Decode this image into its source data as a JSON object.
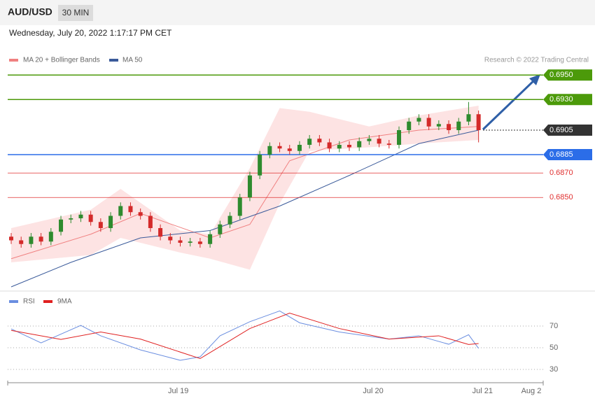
{
  "header": {
    "symbol": "AUD/USD",
    "timeframe": "30 MIN",
    "timestamp": "Wednesday, July 20, 2022 1:17:17 PM CET",
    "credit": "Research © 2022 Trading Central"
  },
  "chart_data": [
    {
      "type": "candlestick",
      "xlim": [
        0,
        53.5
      ],
      "ylim": [
        0.6777,
        0.6977
      ],
      "up_color": "#2e8b2e",
      "down_color": "#d42a2a",
      "open": [
        0.6818,
        0.6815,
        0.6812,
        0.6818,
        0.6814,
        0.6822,
        0.6832,
        0.6833,
        0.6836,
        0.683,
        0.6825,
        0.6835,
        0.6843,
        0.6838,
        0.6835,
        0.6825,
        0.6818,
        0.6815,
        0.6813,
        0.6814,
        0.6812,
        0.682,
        0.6828,
        0.6835,
        0.685,
        0.6868,
        0.6885,
        0.6892,
        0.689,
        0.6888,
        0.6893,
        0.6898,
        0.6895,
        0.689,
        0.6893,
        0.6891,
        0.6896,
        0.6898,
        0.6894,
        0.6893,
        0.6905,
        0.6912,
        0.6915,
        0.6908,
        0.691,
        0.6905,
        0.6912,
        0.6918
      ],
      "high": [
        0.6821,
        0.6818,
        0.6821,
        0.6821,
        0.6825,
        0.6835,
        0.6836,
        0.6839,
        0.6839,
        0.6833,
        0.6838,
        0.6846,
        0.6846,
        0.6841,
        0.6838,
        0.6828,
        0.6821,
        0.6818,
        0.6817,
        0.6817,
        0.6823,
        0.6831,
        0.6838,
        0.6853,
        0.6871,
        0.6888,
        0.6895,
        0.6895,
        0.6893,
        0.6896,
        0.6901,
        0.6901,
        0.6898,
        0.6896,
        0.6896,
        0.6899,
        0.6901,
        0.6901,
        0.6897,
        0.6908,
        0.6915,
        0.6918,
        0.6918,
        0.6913,
        0.6913,
        0.6915,
        0.6928,
        0.6921
      ],
      "low": [
        0.6812,
        0.6809,
        0.6809,
        0.6811,
        0.6811,
        0.6819,
        0.6829,
        0.683,
        0.6827,
        0.6822,
        0.6822,
        0.6832,
        0.6835,
        0.6832,
        0.6822,
        0.6815,
        0.6812,
        0.681,
        0.681,
        0.6809,
        0.6809,
        0.6817,
        0.6825,
        0.6832,
        0.6847,
        0.6865,
        0.6882,
        0.6887,
        0.6885,
        0.6885,
        0.689,
        0.6892,
        0.6887,
        0.6887,
        0.6888,
        0.6888,
        0.6893,
        0.6891,
        0.689,
        0.689,
        0.6902,
        0.6909,
        0.6905,
        0.6905,
        0.6902,
        0.6902,
        0.6909,
        0.6895
      ],
      "close": [
        0.6815,
        0.6812,
        0.6818,
        0.6814,
        0.6822,
        0.6832,
        0.6833,
        0.6836,
        0.683,
        0.6825,
        0.6835,
        0.6843,
        0.6838,
        0.6835,
        0.6825,
        0.6818,
        0.6815,
        0.6813,
        0.6814,
        0.6812,
        0.682,
        0.6828,
        0.6835,
        0.685,
        0.6868,
        0.6885,
        0.6892,
        0.689,
        0.6888,
        0.6893,
        0.6898,
        0.6895,
        0.689,
        0.6893,
        0.6891,
        0.6896,
        0.6898,
        0.6894,
        0.6893,
        0.6905,
        0.6912,
        0.6915,
        0.6908,
        0.691,
        0.6905,
        0.6912,
        0.6918,
        0.6905
      ],
      "bands": {
        "name": "MA 20 + Bollinger Bands",
        "color": "#f08080",
        "x": [
          0,
          8,
          11,
          17,
          20,
          24,
          27,
          30,
          36,
          41,
          47
        ],
        "upper": [
          0.6825,
          0.684,
          0.6857,
          0.6823,
          0.682,
          0.6874,
          0.6923,
          0.692,
          0.6908,
          0.6917,
          0.6925
        ],
        "lower": [
          0.6797,
          0.6803,
          0.6817,
          0.6805,
          0.68,
          0.6791,
          0.6845,
          0.6888,
          0.6891,
          0.6894,
          0.6897
        ],
        "ma_x": [
          0,
          8,
          13,
          20,
          24,
          28,
          34,
          41,
          47
        ],
        "ma": [
          0.68,
          0.682,
          0.6837,
          0.6817,
          0.6828,
          0.688,
          0.6897,
          0.6905,
          0.6908
        ]
      },
      "ma50": {
        "name": "MA 50",
        "color": "#3a5a9a",
        "x": [
          0,
          6,
          13,
          20,
          27,
          34,
          41,
          47
        ],
        "values": [
          0.6777,
          0.6797,
          0.6817,
          0.6823,
          0.6843,
          0.6868,
          0.6894,
          0.6905
        ]
      },
      "levels": [
        {
          "value": 0.695,
          "label": "0.6950",
          "color": "#4c9a0a",
          "boxed": true,
          "style": "solid"
        },
        {
          "value": 0.693,
          "label": "0.6930",
          "color": "#4c9a0a",
          "boxed": true,
          "style": "solid"
        },
        {
          "value": 0.6905,
          "label": "0.6905",
          "color": "#333333",
          "boxed": true,
          "style": "dotted"
        },
        {
          "value": 0.6885,
          "label": "0.6885",
          "color": "#2b6de8",
          "boxed": true,
          "style": "solid"
        },
        {
          "value": 0.687,
          "label": "0.6870",
          "color": "#e03030",
          "boxed": false,
          "style": "solid"
        },
        {
          "value": 0.685,
          "label": "0.6850",
          "color": "#e03030",
          "boxed": false,
          "style": "solid"
        }
      ]
    },
    {
      "type": "line",
      "xlim": [
        0,
        53.5
      ],
      "ylim": [
        22,
        100
      ],
      "yticks": [
        70,
        50,
        30
      ],
      "xticks": [
        {
          "value": 16.8,
          "label": "Jul 19"
        },
        {
          "value": 36.4,
          "label": "Jul 20"
        },
        {
          "value": 47.4,
          "label": "Jul 21"
        },
        {
          "value": 52.3,
          "label": "Aug 2"
        }
      ],
      "series": [
        {
          "name": "RSI",
          "color": "#6a8ee0",
          "x": [
            0,
            3,
            7,
            9,
            13,
            17,
            19,
            21,
            24,
            27,
            29,
            33,
            38,
            41,
            44,
            46,
            47
          ],
          "values": [
            67.4,
            54.5,
            70.6,
            61,
            48,
            38.4,
            41.6,
            61,
            74,
            83.9,
            73,
            64.5,
            58,
            61,
            53.2,
            62,
            49.4
          ]
        },
        {
          "name": "9MA",
          "color": "#e02020",
          "x": [
            0,
            5,
            9,
            13,
            19,
            24,
            28,
            33,
            38,
            43,
            46,
            47
          ],
          "values": [
            66,
            57.7,
            64.5,
            58,
            40,
            67.7,
            81.9,
            67.7,
            58,
            61,
            53,
            53.9
          ]
        }
      ]
    }
  ]
}
